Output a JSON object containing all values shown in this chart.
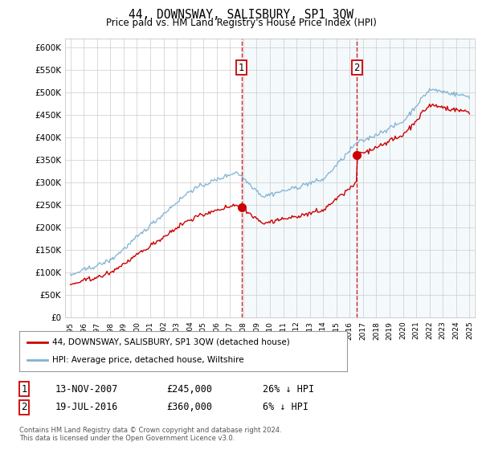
{
  "title": "44, DOWNSWAY, SALISBURY, SP1 3QW",
  "subtitle": "Price paid vs. HM Land Registry's House Price Index (HPI)",
  "ylabel_ticks": [
    "£0",
    "£50K",
    "£100K",
    "£150K",
    "£200K",
    "£250K",
    "£300K",
    "£350K",
    "£400K",
    "£450K",
    "£500K",
    "£550K",
    "£600K"
  ],
  "ylim": [
    0,
    620000
  ],
  "yticks": [
    0,
    50000,
    100000,
    150000,
    200000,
    250000,
    300000,
    350000,
    400000,
    450000,
    500000,
    550000,
    600000
  ],
  "x_start_year": 1995,
  "x_end_year": 2025,
  "purchase1_year": 2007.87,
  "purchase1_price": 245000,
  "purchase1_label": "1",
  "purchase2_year": 2016.54,
  "purchase2_price": 360000,
  "purchase2_label": "2",
  "hpi_color": "#7fb3d3",
  "price_color": "#cc0000",
  "annotation_box_color": "#cc0000",
  "shading_color": "#d6e8f5",
  "legend_line1": "44, DOWNSWAY, SALISBURY, SP1 3QW (detached house)",
  "legend_line2": "HPI: Average price, detached house, Wiltshire",
  "table_row1_num": "1",
  "table_row1_date": "13-NOV-2007",
  "table_row1_price": "£245,000",
  "table_row1_hpi": "26% ↓ HPI",
  "table_row2_num": "2",
  "table_row2_date": "19-JUL-2016",
  "table_row2_price": "£360,000",
  "table_row2_hpi": "6% ↓ HPI",
  "footer": "Contains HM Land Registry data © Crown copyright and database right 2024.\nThis data is licensed under the Open Government Licence v3.0.",
  "background_color": "#ffffff",
  "grid_color": "#cccccc"
}
